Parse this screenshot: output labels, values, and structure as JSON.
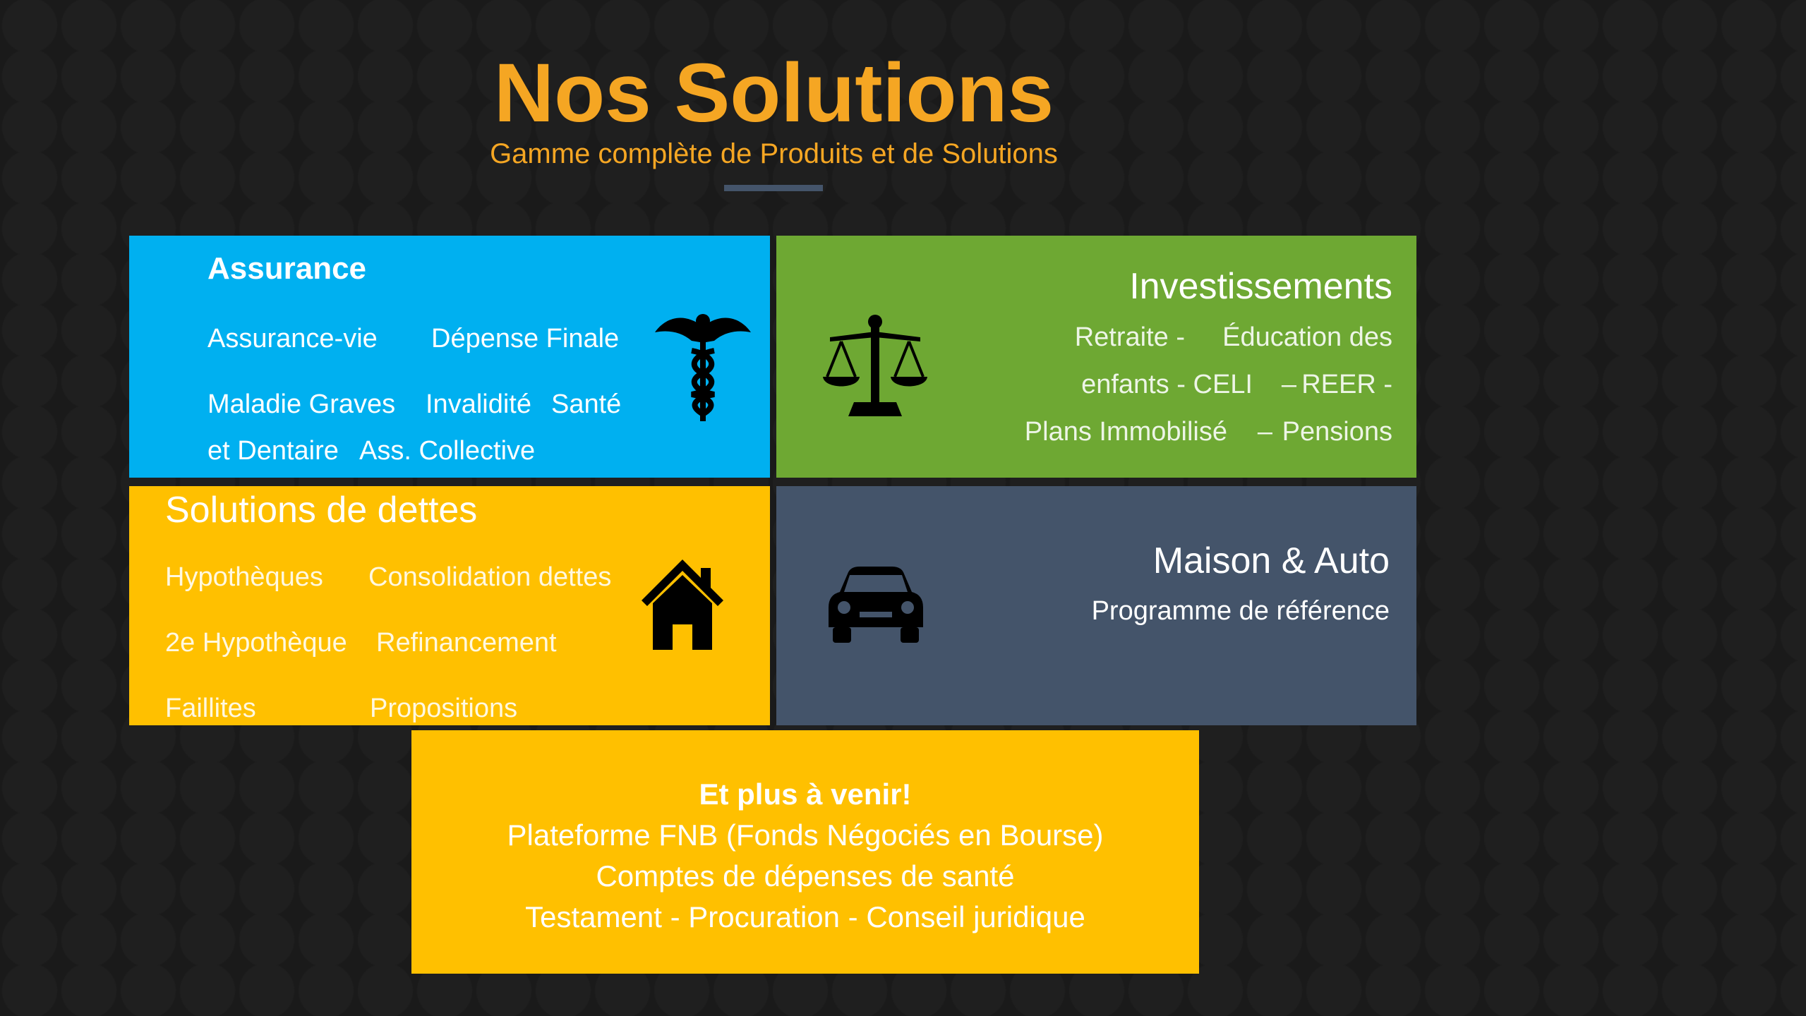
{
  "header": {
    "title": "Nos Solutions",
    "subtitle": "Gamme complète de Produits et de Solutions"
  },
  "assurance": {
    "title": "Assurance",
    "items": [
      "Assurance-vie",
      "Dépense Finale",
      "Maladie Graves",
      "Invalidité",
      "Santé",
      "et Dentaire",
      "Ass. Collective"
    ],
    "icon": "caduceus-icon"
  },
  "investissements": {
    "title": "Investissements",
    "lines": [
      "Retraite -",
      "Éducation des",
      "enfants - CELI",
      "–",
      "REER -",
      "Plans Immobilisé",
      "–",
      "Pensions"
    ],
    "icon": "scales-icon"
  },
  "dettes": {
    "title": "Solutions de dettes",
    "items": [
      "Hypothèques",
      "Consolidation dettes",
      "2e Hypothèque",
      "Refinancement",
      "Faillites",
      "Propositions"
    ],
    "icon": "house-icon"
  },
  "maison": {
    "title": "Maison & Auto",
    "subtitle": "Programme de référence",
    "icon": "car-icon"
  },
  "venir": {
    "title": "Et plus à venir!",
    "lines": [
      "Plateforme FNB (Fonds Négociés en Bourse)",
      "Comptes de dépenses de santé",
      "Testament - Procuration - Conseil juridique"
    ]
  },
  "colors": {
    "accent": "#f5a623",
    "blue": "#00b0f0",
    "green": "#6ea833",
    "yellow": "#ffc000",
    "slate": "#44546a",
    "background": "#1a1a1a"
  }
}
